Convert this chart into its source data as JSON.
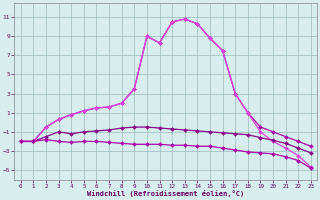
{
  "x": [
    0,
    1,
    2,
    3,
    4,
    5,
    6,
    7,
    8,
    9,
    10,
    11,
    12,
    13,
    14,
    15,
    16,
    17,
    18,
    19,
    20,
    21,
    22,
    23
  ],
  "line1": [
    -2,
    -2,
    -0.5,
    0.3,
    0.8,
    1.2,
    1.5,
    1.6,
    2.0,
    3.5,
    9.0,
    8.3,
    10.5,
    10.8,
    10.3,
    8.8,
    7.5,
    3.0,
    1.0,
    -0.5,
    -1.0,
    -1.5,
    -2.0,
    -2.5
  ],
  "line2": [
    -2,
    -2,
    -0.5,
    0.3,
    0.8,
    1.2,
    1.5,
    1.6,
    2.0,
    3.5,
    9.0,
    8.3,
    10.5,
    10.8,
    10.3,
    8.8,
    7.5,
    3.0,
    1.0,
    -1.0,
    -2.0,
    -2.7,
    -3.5,
    -4.7
  ],
  "line3": [
    -2,
    -2,
    -1.5,
    -1.0,
    -1.2,
    -1.0,
    -0.9,
    -0.8,
    -0.6,
    -0.5,
    -0.5,
    -0.6,
    -0.7,
    -0.8,
    -0.9,
    -1.0,
    -1.1,
    -1.2,
    -1.3,
    -1.6,
    -1.9,
    -2.2,
    -2.7,
    -3.2
  ],
  "line4": [
    -2,
    -2,
    -1.8,
    -2.0,
    -2.1,
    -2.0,
    -2.0,
    -2.1,
    -2.2,
    -2.3,
    -2.3,
    -2.3,
    -2.4,
    -2.4,
    -2.5,
    -2.5,
    -2.7,
    -2.9,
    -3.1,
    -3.2,
    -3.3,
    -3.6,
    -4.0,
    -4.8
  ],
  "color1": "#aa00aa",
  "color2": "#dd44dd",
  "color3": "#880088",
  "color4": "#aa00aa",
  "bg_color": "#d8eeee",
  "grid_color": "#99bbbb",
  "xlabel": "Windchill (Refroidissement éolien,°C)",
  "xlim": [
    -0.5,
    23.5
  ],
  "ylim": [
    -6,
    12.5
  ],
  "yticks": [
    -5,
    -3,
    -1,
    1,
    3,
    5,
    7,
    9,
    11
  ],
  "xticks": [
    0,
    1,
    2,
    3,
    4,
    5,
    6,
    7,
    8,
    9,
    10,
    11,
    12,
    13,
    14,
    15,
    16,
    17,
    18,
    19,
    20,
    21,
    22,
    23
  ],
  "marker": "D",
  "markersize": 2.0,
  "linewidth": 0.9
}
